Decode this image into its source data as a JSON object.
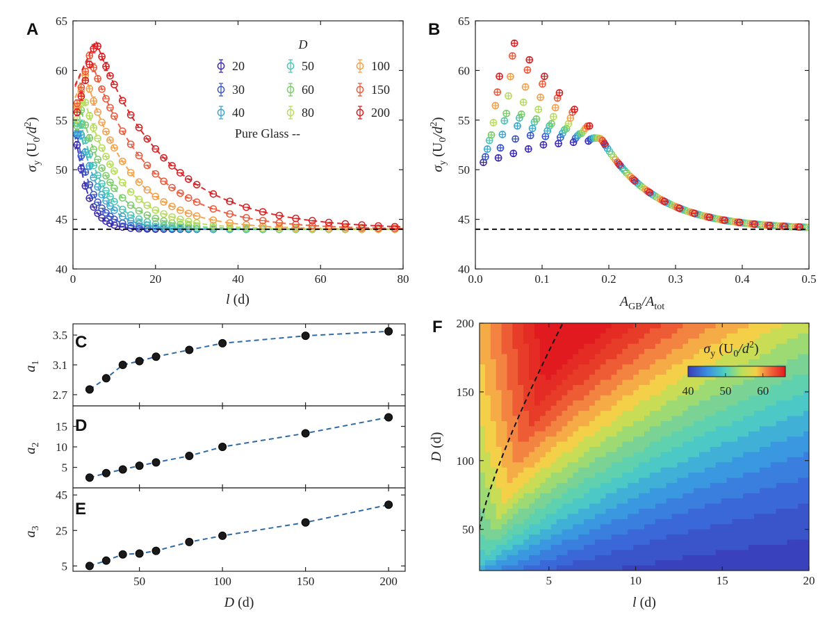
{
  "panels": {
    "A": "A",
    "B": "B",
    "C": "C",
    "D": "D",
    "E": "E",
    "F": "F"
  },
  "colors": {
    "20": "#3b2bb0",
    "30": "#3a55c8",
    "40": "#3aa6d0",
    "50": "#4cc6b4",
    "60": "#7ccc6c",
    "80": "#b7dc5c",
    "100": "#f4a04a",
    "150": "#ec5a3c",
    "200": "#d91f22"
  },
  "chart_data": [
    {
      "id": "A",
      "type": "scatter",
      "xlabel_main": "l",
      "xlabel_unit": " (d)",
      "ylabel_main": "σ",
      "ylabel_sub": "y",
      "ylabel_unit": " (U",
      "ylabel_unit_sub": "0",
      "ylabel_unit_end": "/d",
      "ylabel_unit_sup": "2",
      "ylabel_close": ")",
      "xlim": [
        0,
        80
      ],
      "ylim": [
        40,
        65
      ],
      "xticks": [
        "0",
        "20",
        "40",
        "60",
        "80"
      ],
      "yticks": [
        "40",
        "45",
        "50",
        "55",
        "60",
        "65"
      ],
      "legend_title": "D",
      "legend_note": "Pure Glass --",
      "pure_glass": 44,
      "series": [
        {
          "name": "20",
          "peak": 52.5,
          "lpk": 1.0,
          "scale": 3.0
        },
        {
          "name": "30",
          "peak": 53.5,
          "lpk": 1.0,
          "scale": 4.0
        },
        {
          "name": "40",
          "peak": 54.5,
          "lpk": 1.5,
          "scale": 5.0
        },
        {
          "name": "50",
          "peak": 55.5,
          "lpk": 1.5,
          "scale": 6.0
        },
        {
          "name": "60",
          "peak": 56.0,
          "lpk": 2.0,
          "scale": 7.5
        },
        {
          "name": "80",
          "peak": 57.5,
          "lpk": 2.5,
          "scale": 9.0
        },
        {
          "name": "100",
          "peak": 59.5,
          "lpk": 3.0,
          "scale": 11.0
        },
        {
          "name": "150",
          "peak": 61.5,
          "lpk": 4.0,
          "scale": 14.0
        },
        {
          "name": "200",
          "peak": 63.0,
          "lpk": 5.5,
          "scale": 17.0
        }
      ]
    },
    {
      "id": "B",
      "type": "scatter",
      "xlabel_main": "A",
      "xlabel_sub": "GB",
      "xlabel_mid": "/A",
      "xlabel_sub2": "tot",
      "ylabel_main": "σ",
      "ylabel_sub": "y",
      "ylabel_unit": " (U",
      "ylabel_unit_sub": "0",
      "ylabel_unit_end": "/d",
      "ylabel_unit_sup": "2",
      "ylabel_close": ")",
      "xlim": [
        0,
        0.5
      ],
      "ylim": [
        40,
        65
      ],
      "xticks": [
        "0.0",
        "0.1",
        "0.2",
        "0.3",
        "0.4",
        "0.5"
      ],
      "yticks": [
        "40",
        "45",
        "50",
        "55",
        "60",
        "65"
      ],
      "pure_glass": 44
    },
    {
      "id": "C",
      "type": "scatter",
      "ylabel_main": "a",
      "ylabel_sub": "1",
      "ylim": [
        2.55,
        3.65
      ],
      "yticks": [
        "2.7",
        "3.1",
        "3.5"
      ],
      "ytick_vals": [
        2.7,
        3.1,
        3.5
      ],
      "x": [
        20,
        30,
        40,
        50,
        60,
        80,
        100,
        150,
        200
      ],
      "values": [
        2.77,
        2.92,
        3.1,
        3.15,
        3.21,
        3.3,
        3.39,
        3.49,
        3.55
      ]
    },
    {
      "id": "D",
      "type": "scatter",
      "ylabel_main": "a",
      "ylabel_sub": "2",
      "ylim": [
        0,
        20
      ],
      "yticks": [
        "5",
        "10",
        "15"
      ],
      "ytick_vals": [
        5,
        10,
        15
      ],
      "x": [
        20,
        30,
        40,
        50,
        60,
        80,
        100,
        150,
        200
      ],
      "values": [
        2.5,
        3.6,
        4.5,
        5.4,
        6.2,
        7.8,
        10.0,
        13.3,
        17.2
      ]
    },
    {
      "id": "E",
      "type": "scatter",
      "ylabel_main": "a",
      "ylabel_sub": "3",
      "ylim": [
        2,
        49
      ],
      "yticks": [
        "5",
        "25",
        "45"
      ],
      "ytick_vals": [
        5,
        25,
        45
      ],
      "x": [
        20,
        30,
        40,
        50,
        60,
        80,
        100,
        150,
        200
      ],
      "values": [
        5.0,
        8.0,
        11.5,
        12.0,
        13.5,
        18.5,
        22.0,
        29.5,
        39.5
      ],
      "xlim": [
        10,
        210
      ],
      "xticks": [
        "50",
        "100",
        "150",
        "200"
      ],
      "xtick_vals": [
        50,
        100,
        150,
        200
      ],
      "xlabel_main": "D",
      "xlabel_unit": " (d)"
    },
    {
      "id": "F",
      "type": "heatmap",
      "xlabel_main": "l",
      "xlabel_unit": " (d)",
      "ylabel_main": "D",
      "ylabel_unit": " (d)",
      "xlim": [
        1,
        20
      ],
      "ylim": [
        20,
        200
      ],
      "xticks": [
        "5",
        "10",
        "15",
        "20"
      ],
      "xtick_vals": [
        5,
        10,
        15,
        20
      ],
      "yticks": [
        "50",
        "100",
        "150",
        "200"
      ],
      "ytick_vals": [
        50,
        100,
        150,
        200
      ],
      "colorbar_title_main": "σ",
      "colorbar_title_sub": "y",
      "colorbar_title_unit": " (U",
      "colorbar_title_unit_sub": "0",
      "colorbar_title_unit_end": "/d",
      "colorbar_title_unit_sup": "2",
      "colorbar_title_close": ")",
      "colorbar_ticks": [
        "40",
        "50",
        "60"
      ],
      "colorbar_tick_vals": [
        40,
        50,
        60
      ],
      "colorbar_range": [
        40,
        66
      ]
    }
  ]
}
